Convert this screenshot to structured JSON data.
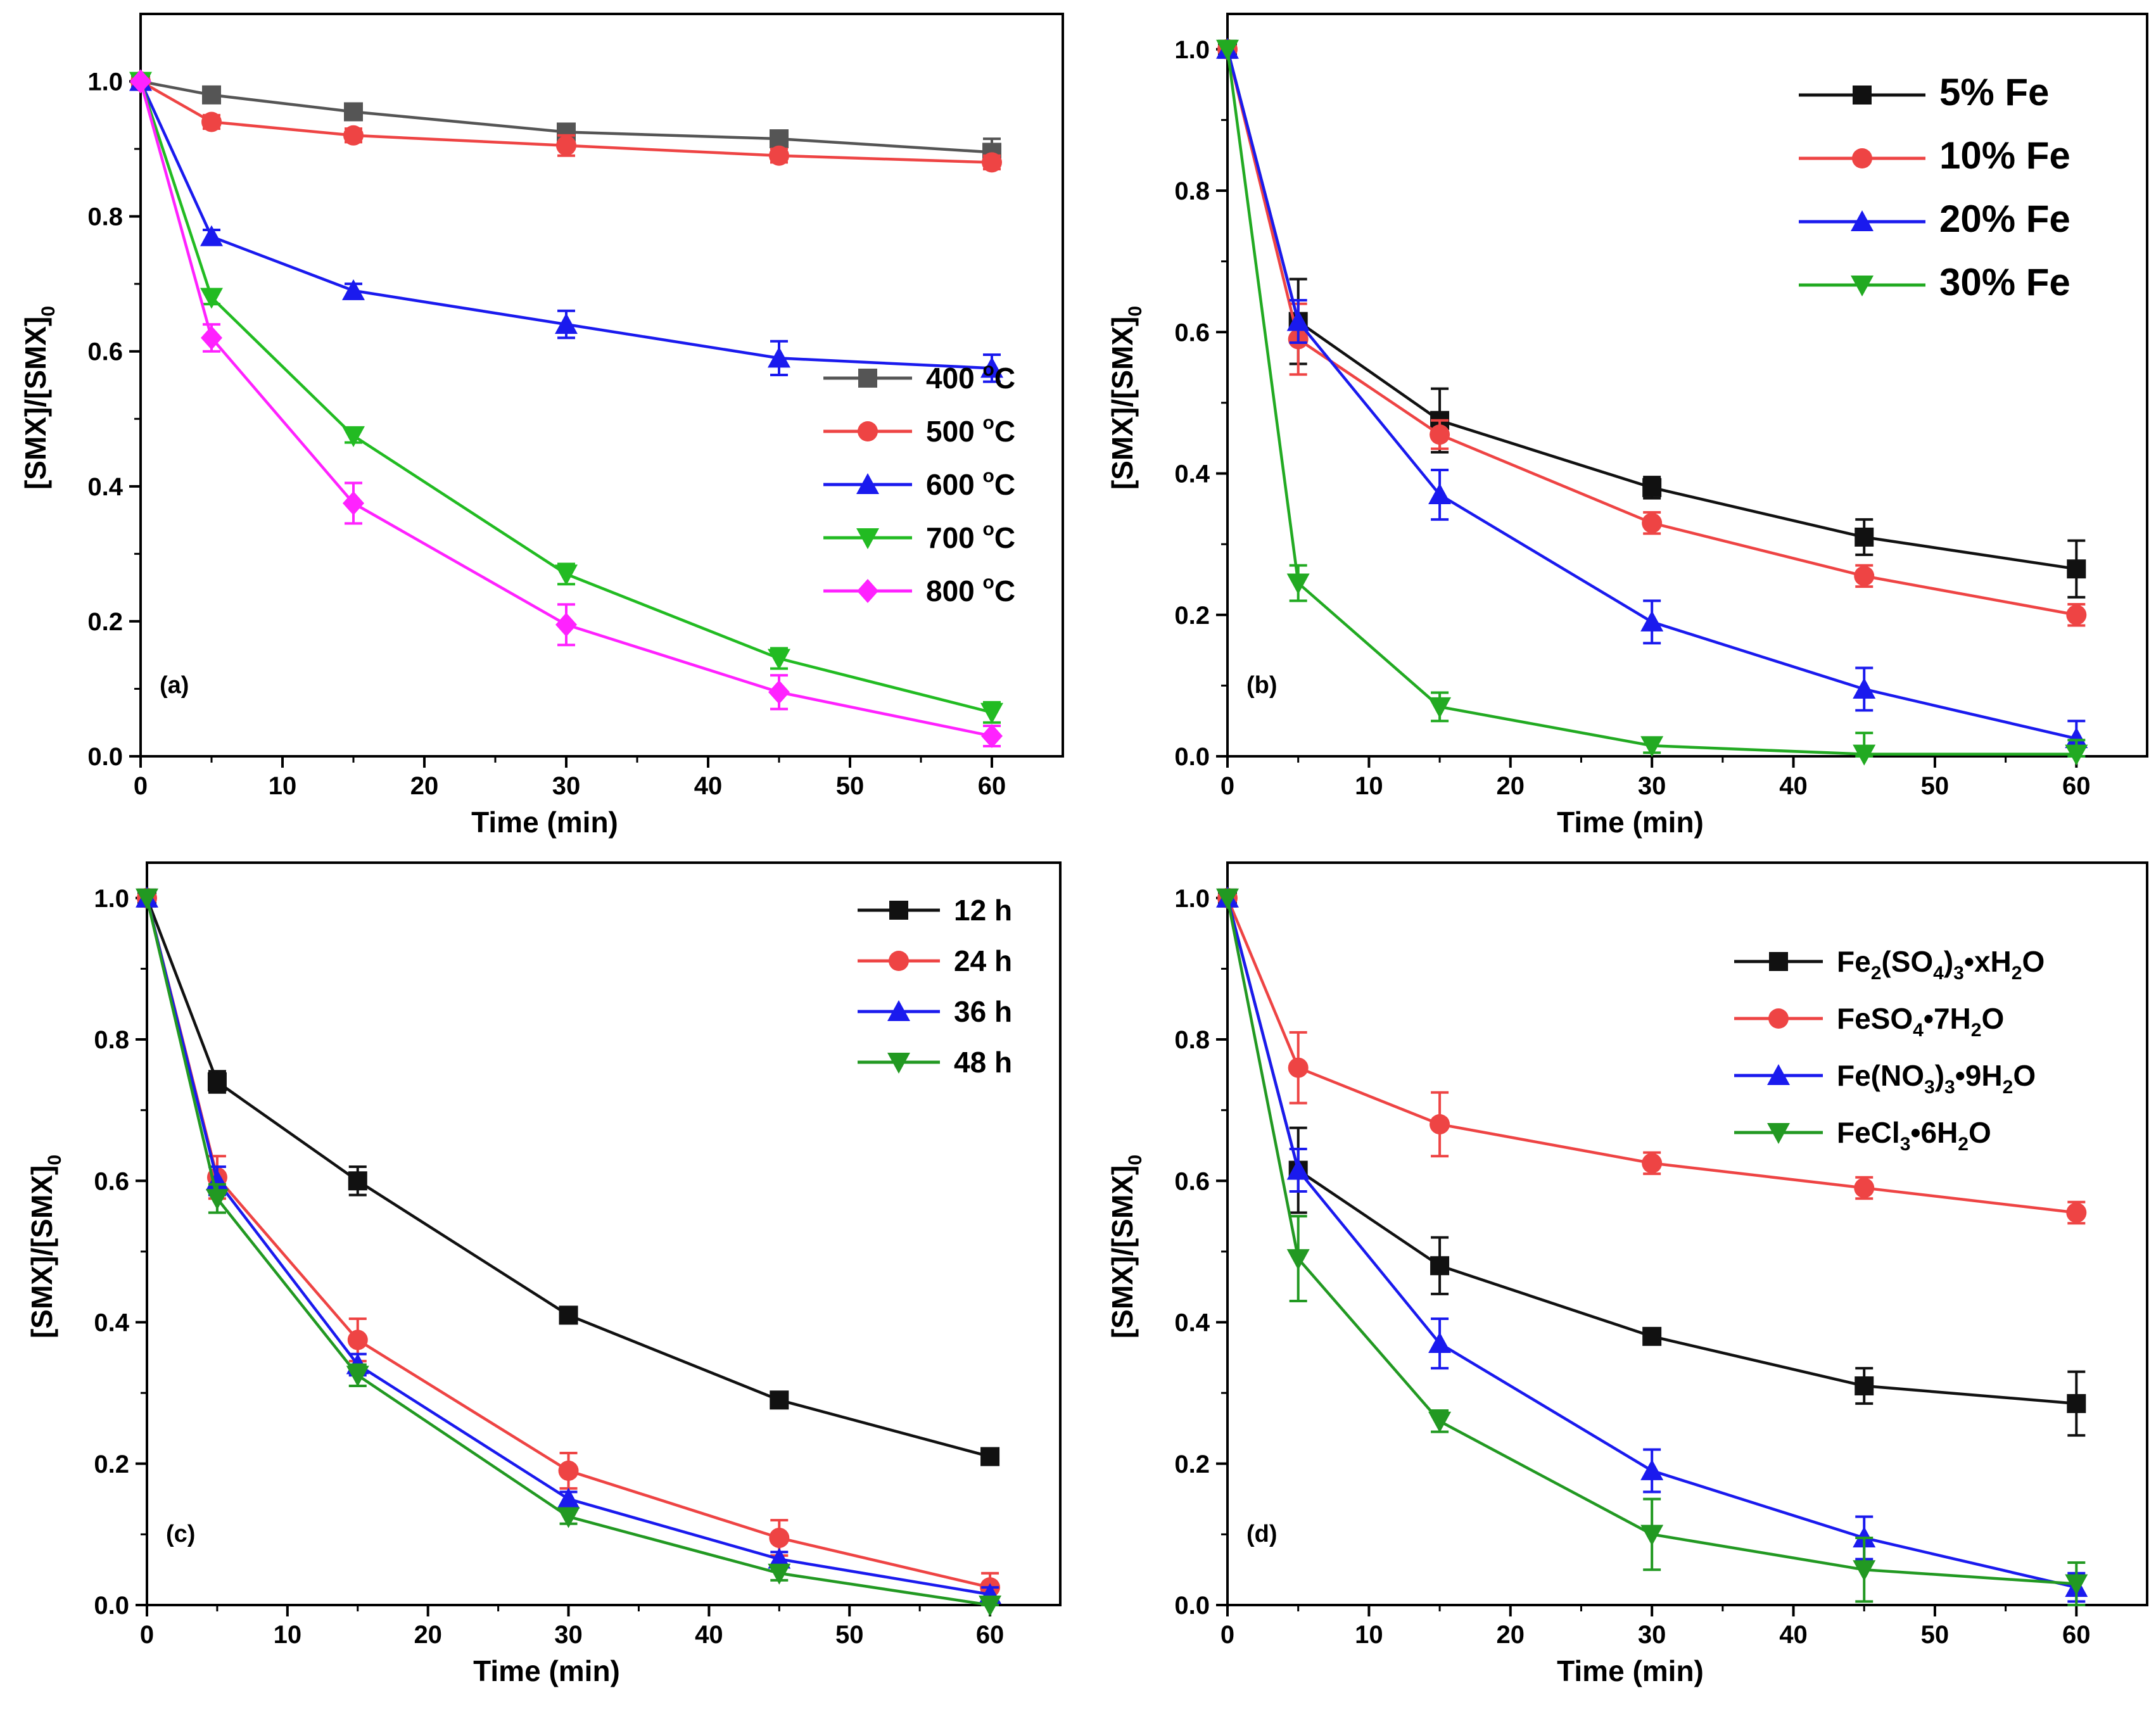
{
  "figure": {
    "background": "#ffffff"
  },
  "chart_data": [
    {
      "type": "line",
      "panel_label": "(a)",
      "xlabel": "Time (min)",
      "ylabel_main": "[SMX]/[SMX]",
      "ylabel_sub": "0",
      "xlim": [
        0,
        65
      ],
      "ylim": [
        0,
        1.1
      ],
      "xticks": [
        "0",
        "10",
        "20",
        "30",
        "40",
        "50",
        "60"
      ],
      "yticks": [
        "0.0",
        "0.2",
        "0.4",
        "0.6",
        "0.8",
        "1.0"
      ],
      "legend_position": "right-middle",
      "x": [
        0,
        5,
        15,
        30,
        45,
        60
      ],
      "series": [
        {
          "name": "400 °C",
          "color": "#555555",
          "marker": "square",
          "values": [
            1.0,
            0.98,
            0.955,
            0.925,
            0.915,
            0.895
          ],
          "errors": [
            0.0,
            0.01,
            0.01,
            0.01,
            0.01,
            0.02
          ]
        },
        {
          "name": "500 °C",
          "color": "#ee4444",
          "marker": "circle",
          "values": [
            1.0,
            0.94,
            0.92,
            0.905,
            0.89,
            0.88
          ],
          "errors": [
            0.0,
            0.01,
            0.01,
            0.015,
            0.01,
            0.01
          ]
        },
        {
          "name": "600 °C",
          "color": "#1a1aee",
          "marker": "triangle-up",
          "values": [
            1.0,
            0.77,
            0.69,
            0.64,
            0.59,
            0.575
          ],
          "errors": [
            0.0,
            0.01,
            0.01,
            0.02,
            0.025,
            0.02
          ]
        },
        {
          "name": "700 °C",
          "color": "#22bb22",
          "marker": "triangle-down",
          "values": [
            1.0,
            0.68,
            0.475,
            0.27,
            0.145,
            0.065
          ],
          "errors": [
            0.0,
            0.01,
            0.01,
            0.015,
            0.015,
            0.015
          ]
        },
        {
          "name": "800 °C",
          "color": "#ff22ff",
          "marker": "diamond",
          "values": [
            1.0,
            0.62,
            0.375,
            0.195,
            0.095,
            0.03
          ],
          "errors": [
            0.0,
            0.02,
            0.03,
            0.03,
            0.025,
            0.015
          ]
        }
      ]
    },
    {
      "type": "line",
      "panel_label": "(b)",
      "xlabel": "Time (min)",
      "ylabel_main": "[SMX]/[SMX]",
      "ylabel_sub": "0",
      "xlim": [
        0,
        65
      ],
      "ylim": [
        0,
        1.0
      ],
      "xticks": [
        "0",
        "10",
        "20",
        "30",
        "40",
        "50",
        "60"
      ],
      "yticks": [
        "0.0",
        "0.2",
        "0.4",
        "0.6",
        "0.8",
        "1.0"
      ],
      "legend_position": "top-right",
      "x": [
        0,
        5,
        15,
        30,
        45,
        60
      ],
      "series": [
        {
          "name": "5% Fe",
          "color": "#111111",
          "marker": "square",
          "values": [
            1.0,
            0.615,
            0.475,
            0.38,
            0.31,
            0.265
          ],
          "errors": [
            0.0,
            0.06,
            0.045,
            0.015,
            0.025,
            0.04
          ]
        },
        {
          "name": "10% Fe",
          "color": "#ee4444",
          "marker": "circle",
          "values": [
            1.0,
            0.59,
            0.455,
            0.33,
            0.255,
            0.2
          ],
          "errors": [
            0.0,
            0.05,
            0.02,
            0.015,
            0.015,
            0.015
          ]
        },
        {
          "name": "20% Fe",
          "color": "#1a1aee",
          "marker": "triangle-up",
          "values": [
            1.0,
            0.615,
            0.37,
            0.19,
            0.095,
            0.025
          ],
          "errors": [
            0.0,
            0.03,
            0.035,
            0.03,
            0.03,
            0.025
          ]
        },
        {
          "name": "30% Fe",
          "color": "#22aa22",
          "marker": "triangle-down",
          "values": [
            1.0,
            0.245,
            0.07,
            0.015,
            0.003,
            0.003
          ],
          "errors": [
            0.0,
            0.025,
            0.02,
            0.01,
            0.03,
            0.02
          ]
        }
      ]
    },
    {
      "type": "line",
      "panel_label": "(c)",
      "xlabel": "Time (min)",
      "ylabel_main": "[SMX]/[SMX]",
      "ylabel_sub": "0",
      "xlim": [
        0,
        65
      ],
      "ylim": [
        0,
        1.0
      ],
      "xticks": [
        "0",
        "10",
        "20",
        "30",
        "40",
        "50",
        "60"
      ],
      "yticks": [
        "0.0",
        "0.2",
        "0.4",
        "0.6",
        "0.8",
        "1.0"
      ],
      "legend_position": "top-right",
      "x": [
        0,
        5,
        15,
        30,
        45,
        60
      ],
      "series": [
        {
          "name": "12 h",
          "color": "#111111",
          "marker": "square",
          "values": [
            1.0,
            0.74,
            0.6,
            0.41,
            0.29,
            0.21
          ],
          "errors": [
            0.0,
            0.015,
            0.02,
            0.01,
            0.01,
            0.01
          ]
        },
        {
          "name": "24 h",
          "color": "#ee4444",
          "marker": "circle",
          "values": [
            1.0,
            0.605,
            0.375,
            0.19,
            0.095,
            0.025
          ],
          "errors": [
            0.0,
            0.03,
            0.03,
            0.025,
            0.025,
            0.02
          ]
        },
        {
          "name": "36 h",
          "color": "#1a1aee",
          "marker": "triangle-up",
          "values": [
            1.0,
            0.6,
            0.34,
            0.15,
            0.065,
            0.015
          ],
          "errors": [
            0.0,
            0.02,
            0.015,
            0.01,
            0.01,
            0.01
          ]
        },
        {
          "name": "48 h",
          "color": "#229922",
          "marker": "triangle-down",
          "values": [
            1.0,
            0.575,
            0.325,
            0.125,
            0.045,
            0.0
          ],
          "errors": [
            0.0,
            0.02,
            0.015,
            0.01,
            0.01,
            0.01
          ]
        }
      ]
    },
    {
      "type": "line",
      "panel_label": "(d)",
      "xlabel": "Time (min)",
      "ylabel_main": "[SMX]/[SMX]",
      "ylabel_sub": "0",
      "xlim": [
        0,
        65
      ],
      "ylim": [
        0,
        1.0
      ],
      "xticks": [
        "0",
        "10",
        "20",
        "30",
        "40",
        "50",
        "60"
      ],
      "yticks": [
        "0.0",
        "0.2",
        "0.4",
        "0.6",
        "0.8",
        "1.0"
      ],
      "legend_position": "right-upper",
      "x": [
        0,
        5,
        15,
        30,
        45,
        60
      ],
      "series": [
        {
          "name": "Fe2(SO4)3•xH2O",
          "label_parts": [
            [
              "Fe",
              false
            ],
            [
              "2",
              true
            ],
            [
              "(SO",
              false
            ],
            [
              "4",
              true
            ],
            [
              ")",
              false
            ],
            [
              "3",
              true
            ],
            [
              "•xH",
              false
            ],
            [
              "2",
              true
            ],
            [
              "O",
              false
            ]
          ],
          "color": "#111111",
          "marker": "square",
          "values": [
            1.0,
            0.615,
            0.48,
            0.38,
            0.31,
            0.285
          ],
          "errors": [
            0.0,
            0.06,
            0.04,
            0.01,
            0.025,
            0.045
          ]
        },
        {
          "name": "FeSO4•7H2O",
          "label_parts": [
            [
              "FeSO",
              false
            ],
            [
              "4",
              true
            ],
            [
              "•7H",
              false
            ],
            [
              "2",
              true
            ],
            [
              "O",
              false
            ]
          ],
          "color": "#ee4444",
          "marker": "circle",
          "values": [
            1.0,
            0.76,
            0.68,
            0.625,
            0.59,
            0.555
          ],
          "errors": [
            0.0,
            0.05,
            0.045,
            0.015,
            0.015,
            0.015
          ]
        },
        {
          "name": "Fe(NO3)3•9H2O",
          "label_parts": [
            [
              "Fe(NO",
              false
            ],
            [
              "3",
              true
            ],
            [
              ")",
              false
            ],
            [
              "3",
              true
            ],
            [
              "•9H",
              false
            ],
            [
              "2",
              true
            ],
            [
              "O",
              false
            ]
          ],
          "color": "#1a1aee",
          "marker": "triangle-up",
          "values": [
            1.0,
            0.615,
            0.37,
            0.19,
            0.095,
            0.025
          ],
          "errors": [
            0.0,
            0.03,
            0.035,
            0.03,
            0.03,
            0.02
          ]
        },
        {
          "name": "FeCl3•6H2O",
          "label_parts": [
            [
              "FeCl",
              false
            ],
            [
              "3",
              true
            ],
            [
              "•6H",
              false
            ],
            [
              "2",
              true
            ],
            [
              "O",
              false
            ]
          ],
          "color": "#229922",
          "marker": "triangle-down",
          "values": [
            1.0,
            0.49,
            0.26,
            0.1,
            0.05,
            0.03
          ],
          "errors": [
            0.0,
            0.06,
            0.015,
            0.05,
            0.045,
            0.03
          ]
        }
      ]
    }
  ]
}
